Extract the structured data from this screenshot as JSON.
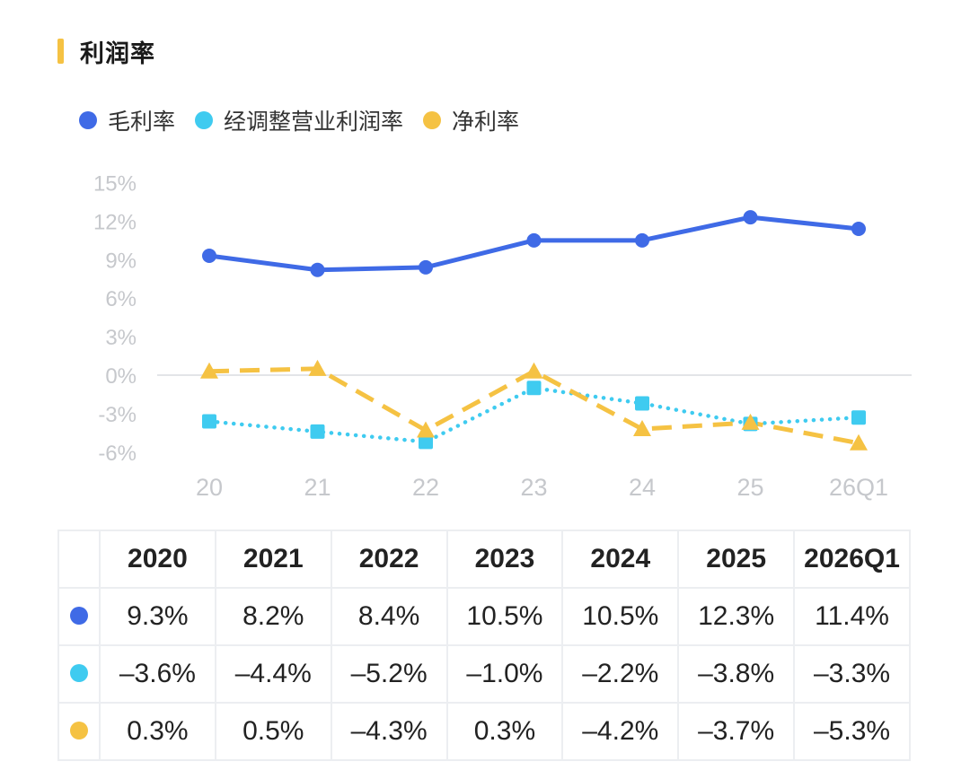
{
  "section": {
    "title": "利润率",
    "accent_color": "#f5c243"
  },
  "legend": [
    {
      "label": "毛利率",
      "color": "#3f6ae6",
      "icon": "blue-dot-icon"
    },
    {
      "label": "经调整营业利润率",
      "color": "#3fcbf0",
      "icon": "cyan-dot-icon"
    },
    {
      "label": "净利率",
      "color": "#f5c243",
      "icon": "yellow-dot-icon"
    }
  ],
  "chart_data": {
    "type": "line",
    "x": [
      "20",
      "21",
      "22",
      "23",
      "24",
      "25",
      "26Q1"
    ],
    "yticks": [
      "15%",
      "12%",
      "9%",
      "6%",
      "3%",
      "0%",
      "-3%",
      "-6%"
    ],
    "ylim": [
      -6,
      15
    ],
    "series": [
      {
        "name": "毛利率",
        "values": [
          9.3,
          8.2,
          8.4,
          10.5,
          10.5,
          12.3,
          11.4
        ],
        "color": "#3f6ae6",
        "style": "solid",
        "marker": "circle"
      },
      {
        "name": "经调整营业利润率",
        "values": [
          -3.6,
          -4.4,
          -5.2,
          -1.0,
          -2.2,
          -3.8,
          -3.3
        ],
        "color": "#3fcbf0",
        "style": "dotted",
        "marker": "square"
      },
      {
        "name": "净利率",
        "values": [
          0.3,
          0.5,
          -4.3,
          0.3,
          -4.2,
          -3.7,
          -5.3
        ],
        "color": "#f5c243",
        "style": "dashed",
        "marker": "triangle"
      }
    ]
  },
  "table": {
    "headers": [
      "2020",
      "2021",
      "2022",
      "2023",
      "2024",
      "2025",
      "2026Q1"
    ],
    "rows": [
      {
        "color": "#3f6ae6",
        "icon": "blue-dot-icon",
        "cells": [
          "9.3%",
          "8.2%",
          "8.4%",
          "10.5%",
          "10.5%",
          "12.3%",
          "11.4%"
        ]
      },
      {
        "color": "#3fcbf0",
        "icon": "cyan-dot-icon",
        "cells": [
          "–3.6%",
          "–4.4%",
          "–5.2%",
          "–1.0%",
          "–2.2%",
          "–3.8%",
          "–3.3%"
        ]
      },
      {
        "color": "#f5c243",
        "icon": "yellow-dot-icon",
        "cells": [
          "0.3%",
          "0.5%",
          "–4.3%",
          "0.3%",
          "–4.2%",
          "–3.7%",
          "–5.3%"
        ]
      }
    ]
  }
}
